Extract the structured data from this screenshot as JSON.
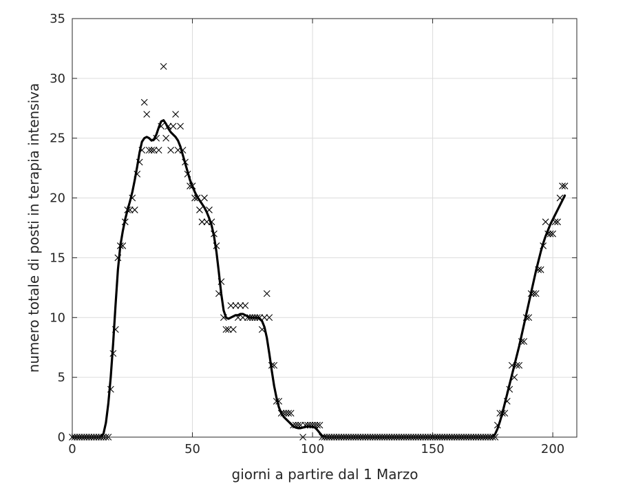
{
  "chart_data": {
    "type": "scatter",
    "title": "",
    "xlabel": "giorni a partire dal 1 Marzo",
    "ylabel": "numero totale di posti in terapia intensiva",
    "xlim": [
      0,
      210
    ],
    "ylim": [
      0,
      35
    ],
    "xticks": [
      0,
      50,
      100,
      150,
      200
    ],
    "yticks": [
      0,
      5,
      10,
      15,
      20,
      25,
      30,
      35
    ],
    "grid": true,
    "legend": "none",
    "colors": {
      "markers": "#000000",
      "fit": "#000000",
      "grid": "#dcdcdc",
      "axes": "#262626"
    },
    "series": [
      {
        "marker": "x",
        "points": [
          [
            0,
            0
          ],
          [
            1,
            0
          ],
          [
            2,
            0
          ],
          [
            3,
            0
          ],
          [
            4,
            0
          ],
          [
            5,
            0
          ],
          [
            6,
            0
          ],
          [
            7,
            0
          ],
          [
            8,
            0
          ],
          [
            9,
            0
          ],
          [
            10,
            0
          ],
          [
            11,
            0
          ],
          [
            12,
            0
          ],
          [
            13,
            0
          ],
          [
            14,
            0
          ],
          [
            15,
            0
          ],
          [
            16,
            4
          ],
          [
            17,
            7
          ],
          [
            18,
            9
          ],
          [
            19,
            15
          ],
          [
            20,
            16
          ],
          [
            21,
            16
          ],
          [
            22,
            18
          ],
          [
            23,
            19
          ],
          [
            24,
            19
          ],
          [
            25,
            20
          ],
          [
            26,
            19
          ],
          [
            27,
            22
          ],
          [
            28,
            23
          ],
          [
            29,
            24
          ],
          [
            30,
            28
          ],
          [
            31,
            27
          ],
          [
            32,
            24
          ],
          [
            33,
            24
          ],
          [
            34,
            24
          ],
          [
            35,
            25
          ],
          [
            36,
            24
          ],
          [
            37,
            26
          ],
          [
            38,
            31
          ],
          [
            39,
            25
          ],
          [
            40,
            26
          ],
          [
            41,
            24
          ],
          [
            42,
            26
          ],
          [
            43,
            27
          ],
          [
            44,
            24
          ],
          [
            45,
            26
          ],
          [
            46,
            24
          ],
          [
            47,
            23
          ],
          [
            48,
            22
          ],
          [
            49,
            21
          ],
          [
            50,
            21
          ],
          [
            51,
            20
          ],
          [
            52,
            20
          ],
          [
            53,
            19
          ],
          [
            54,
            18
          ],
          [
            55,
            20
          ],
          [
            56,
            18
          ],
          [
            57,
            19
          ],
          [
            58,
            18
          ],
          [
            59,
            17
          ],
          [
            60,
            16
          ],
          [
            61,
            12
          ],
          [
            62,
            13
          ],
          [
            63,
            10
          ],
          [
            64,
            9
          ],
          [
            65,
            9
          ],
          [
            66,
            11
          ],
          [
            67,
            9
          ],
          [
            68,
            11
          ],
          [
            69,
            10
          ],
          [
            70,
            11
          ],
          [
            71,
            10
          ],
          [
            72,
            11
          ],
          [
            73,
            10
          ],
          [
            74,
            10
          ],
          [
            75,
            10
          ],
          [
            76,
            10
          ],
          [
            77,
            10
          ],
          [
            78,
            10
          ],
          [
            79,
            9
          ],
          [
            80,
            10
          ],
          [
            81,
            12
          ],
          [
            82,
            10
          ],
          [
            83,
            6
          ],
          [
            84,
            6
          ],
          [
            85,
            3
          ],
          [
            86,
            3
          ],
          [
            87,
            2
          ],
          [
            88,
            2
          ],
          [
            89,
            2
          ],
          [
            90,
            2
          ],
          [
            91,
            2
          ],
          [
            92,
            1
          ],
          [
            93,
            1
          ],
          [
            94,
            1
          ],
          [
            95,
            1
          ],
          [
            96,
            0
          ],
          [
            97,
            1
          ],
          [
            98,
            1
          ],
          [
            99,
            1
          ],
          [
            100,
            1
          ],
          [
            101,
            1
          ],
          [
            102,
            1
          ],
          [
            103,
            1
          ],
          [
            104,
            0
          ],
          [
            105,
            0
          ],
          [
            106,
            0
          ],
          [
            107,
            0
          ],
          [
            108,
            0
          ],
          [
            109,
            0
          ],
          [
            110,
            0
          ],
          [
            111,
            0
          ],
          [
            112,
            0
          ],
          [
            113,
            0
          ],
          [
            114,
            0
          ],
          [
            115,
            0
          ],
          [
            116,
            0
          ],
          [
            117,
            0
          ],
          [
            118,
            0
          ],
          [
            119,
            0
          ],
          [
            120,
            0
          ],
          [
            121,
            0
          ],
          [
            122,
            0
          ],
          [
            123,
            0
          ],
          [
            124,
            0
          ],
          [
            125,
            0
          ],
          [
            126,
            0
          ],
          [
            127,
            0
          ],
          [
            128,
            0
          ],
          [
            129,
            0
          ],
          [
            130,
            0
          ],
          [
            131,
            0
          ],
          [
            132,
            0
          ],
          [
            133,
            0
          ],
          [
            134,
            0
          ],
          [
            135,
            0
          ],
          [
            136,
            0
          ],
          [
            137,
            0
          ],
          [
            138,
            0
          ],
          [
            139,
            0
          ],
          [
            140,
            0
          ],
          [
            141,
            0
          ],
          [
            142,
            0
          ],
          [
            143,
            0
          ],
          [
            144,
            0
          ],
          [
            145,
            0
          ],
          [
            146,
            0
          ],
          [
            147,
            0
          ],
          [
            148,
            0
          ],
          [
            149,
            0
          ],
          [
            150,
            0
          ],
          [
            151,
            0
          ],
          [
            152,
            0
          ],
          [
            153,
            0
          ],
          [
            154,
            0
          ],
          [
            155,
            0
          ],
          [
            156,
            0
          ],
          [
            157,
            0
          ],
          [
            158,
            0
          ],
          [
            159,
            0
          ],
          [
            160,
            0
          ],
          [
            161,
            0
          ],
          [
            162,
            0
          ],
          [
            163,
            0
          ],
          [
            164,
            0
          ],
          [
            165,
            0
          ],
          [
            166,
            0
          ],
          [
            167,
            0
          ],
          [
            168,
            0
          ],
          [
            169,
            0
          ],
          [
            170,
            0
          ],
          [
            171,
            0
          ],
          [
            172,
            0
          ],
          [
            173,
            0
          ],
          [
            174,
            0
          ],
          [
            175,
            0
          ],
          [
            176,
            0
          ],
          [
            177,
            1
          ],
          [
            178,
            2
          ],
          [
            179,
            2
          ],
          [
            180,
            2
          ],
          [
            181,
            3
          ],
          [
            182,
            4
          ],
          [
            183,
            6
          ],
          [
            184,
            5
          ],
          [
            185,
            6
          ],
          [
            186,
            6
          ],
          [
            187,
            8
          ],
          [
            188,
            8
          ],
          [
            189,
            10
          ],
          [
            190,
            10
          ],
          [
            191,
            12
          ],
          [
            192,
            12
          ],
          [
            193,
            12
          ],
          [
            194,
            14
          ],
          [
            195,
            14
          ],
          [
            196,
            16
          ],
          [
            197,
            18
          ],
          [
            198,
            17
          ],
          [
            199,
            17
          ],
          [
            200,
            17
          ],
          [
            201,
            18
          ],
          [
            202,
            18
          ],
          [
            203,
            20
          ],
          [
            204,
            21
          ],
          [
            205,
            21
          ]
        ]
      },
      {
        "type": "line",
        "points": [
          [
            0,
            0
          ],
          [
            12,
            0
          ],
          [
            13,
            0.3
          ],
          [
            14,
            1.2
          ],
          [
            15,
            2.8
          ],
          [
            16,
            5.0
          ],
          [
            17,
            7.8
          ],
          [
            18,
            11.0
          ],
          [
            19,
            14.0
          ],
          [
            20,
            16.0
          ],
          [
            21,
            17.2
          ],
          [
            22,
            18.2
          ],
          [
            23,
            19.0
          ],
          [
            24,
            19.7
          ],
          [
            25,
            20.5
          ],
          [
            26,
            21.5
          ],
          [
            27,
            22.6
          ],
          [
            28,
            23.8
          ],
          [
            29,
            24.7
          ],
          [
            30,
            25.0
          ],
          [
            31,
            25.1
          ],
          [
            32,
            25.0
          ],
          [
            33,
            24.8
          ],
          [
            34,
            24.9
          ],
          [
            35,
            25.3
          ],
          [
            36,
            25.9
          ],
          [
            37,
            26.4
          ],
          [
            38,
            26.5
          ],
          [
            39,
            26.2
          ],
          [
            40,
            25.8
          ],
          [
            41,
            25.5
          ],
          [
            42,
            25.3
          ],
          [
            43,
            25.1
          ],
          [
            44,
            24.8
          ],
          [
            45,
            24.3
          ],
          [
            46,
            23.6
          ],
          [
            47,
            22.9
          ],
          [
            48,
            22.2
          ],
          [
            49,
            21.5
          ],
          [
            50,
            21.0
          ],
          [
            51,
            20.5
          ],
          [
            52,
            20.1
          ],
          [
            53,
            19.8
          ],
          [
            54,
            19.5
          ],
          [
            55,
            19.2
          ],
          [
            56,
            18.8
          ],
          [
            57,
            18.3
          ],
          [
            58,
            17.7
          ],
          [
            59,
            16.8
          ],
          [
            60,
            15.5
          ],
          [
            61,
            13.8
          ],
          [
            62,
            12.0
          ],
          [
            63,
            10.6
          ],
          [
            64,
            10.0
          ],
          [
            65,
            9.9
          ],
          [
            66,
            10.0
          ],
          [
            67,
            10.1
          ],
          [
            68,
            10.2
          ],
          [
            69,
            10.2
          ],
          [
            70,
            10.3
          ],
          [
            71,
            10.3
          ],
          [
            72,
            10.2
          ],
          [
            73,
            10.1
          ],
          [
            74,
            10.0
          ],
          [
            75,
            10.0
          ],
          [
            76,
            10.0
          ],
          [
            77,
            10.0
          ],
          [
            78,
            9.9
          ],
          [
            79,
            9.7
          ],
          [
            80,
            9.2
          ],
          [
            81,
            8.3
          ],
          [
            82,
            7.0
          ],
          [
            83,
            5.6
          ],
          [
            84,
            4.3
          ],
          [
            85,
            3.3
          ],
          [
            86,
            2.5
          ],
          [
            87,
            2.0
          ],
          [
            88,
            1.7
          ],
          [
            89,
            1.5
          ],
          [
            90,
            1.3
          ],
          [
            91,
            1.1
          ],
          [
            92,
            0.9
          ],
          [
            93,
            0.8
          ],
          [
            94,
            0.75
          ],
          [
            95,
            0.75
          ],
          [
            96,
            0.8
          ],
          [
            97,
            0.85
          ],
          [
            98,
            0.9
          ],
          [
            99,
            0.9
          ],
          [
            100,
            0.85
          ],
          [
            101,
            0.8
          ],
          [
            102,
            0.6
          ],
          [
            103,
            0.35
          ],
          [
            104,
            0.12
          ],
          [
            105,
            0.02
          ],
          [
            106,
            0
          ],
          [
            175,
            0
          ],
          [
            176,
            0.25
          ],
          [
            177,
            0.7
          ],
          [
            178,
            1.3
          ],
          [
            179,
            2.0
          ],
          [
            180,
            2.8
          ],
          [
            181,
            3.6
          ],
          [
            182,
            4.4
          ],
          [
            183,
            5.2
          ],
          [
            184,
            6.0
          ],
          [
            185,
            6.8
          ],
          [
            186,
            7.6
          ],
          [
            187,
            8.5
          ],
          [
            188,
            9.4
          ],
          [
            189,
            10.3
          ],
          [
            190,
            11.2
          ],
          [
            191,
            12.1
          ],
          [
            192,
            13.0
          ],
          [
            193,
            13.9
          ],
          [
            194,
            14.7
          ],
          [
            195,
            15.5
          ],
          [
            196,
            16.2
          ],
          [
            197,
            16.8
          ],
          [
            198,
            17.3
          ],
          [
            199,
            17.8
          ],
          [
            200,
            18.2
          ],
          [
            201,
            18.6
          ],
          [
            202,
            19.0
          ],
          [
            203,
            19.4
          ],
          [
            204,
            19.8
          ],
          [
            205,
            20.2
          ]
        ]
      }
    ]
  }
}
